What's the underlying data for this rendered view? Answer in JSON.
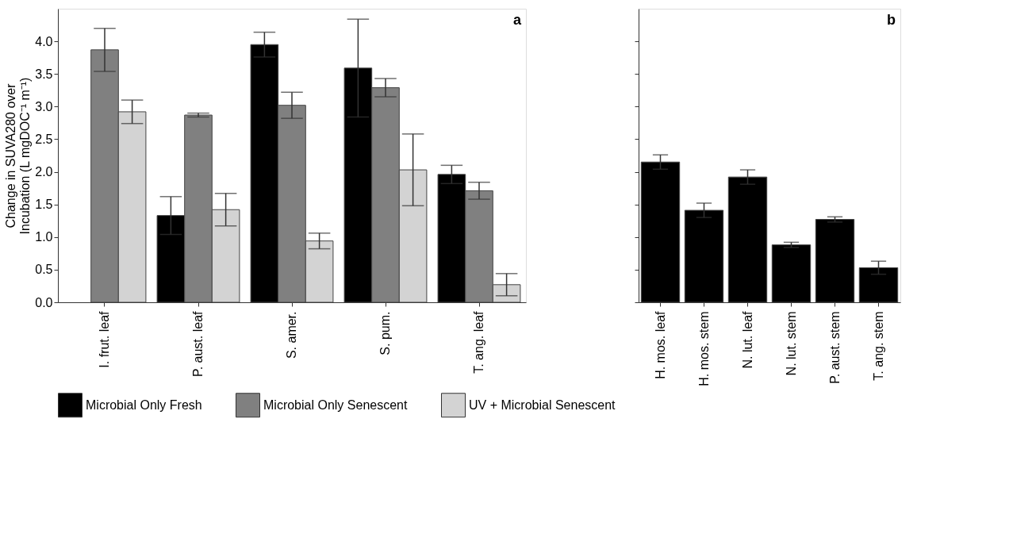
{
  "chart_data": [
    {
      "type": "bar",
      "ylabel": "Change in SUVA280 over\nIncubation (L mgDOC⁻¹ m⁻¹)",
      "categories": [
        "I. frut. leaf",
        "P. aust. leaf",
        "S. amer.",
        "S. pum.",
        "T. ang. leaf"
      ],
      "series": [
        {
          "name": "Microbial Only Fresh",
          "color": "#000000",
          "values": [
            null,
            1.33,
            3.95,
            3.59,
            1.96
          ],
          "errors": [
            null,
            0.29,
            0.19,
            0.75,
            0.14
          ]
        },
        {
          "name": "Microbial Only Senescent",
          "color": "#808080",
          "values": [
            3.87,
            2.87,
            3.02,
            3.29,
            1.71
          ],
          "errors": [
            0.33,
            0.03,
            0.2,
            0.14,
            0.13
          ]
        },
        {
          "name": "UV + Microbial Senescent",
          "color": "#d3d3d3",
          "values": [
            2.92,
            1.42,
            0.94,
            2.03,
            0.27
          ],
          "errors": [
            0.18,
            0.25,
            0.12,
            0.55,
            0.17
          ]
        }
      ],
      "ylim": [
        0,
        4.5
      ],
      "yticks": [
        {
          "value": 0,
          "label": "0.0"
        },
        0.5,
        {
          "value": 1,
          "label": "1.0"
        },
        1.5,
        {
          "value": 2,
          "label": "2.0"
        },
        2.5,
        {
          "value": 3,
          "label": "3.0"
        },
        3.5,
        {
          "value": 4,
          "label": "4.0"
        }
      ],
      "grid": false,
      "legend": "bottom",
      "annotations": [
        "a"
      ]
    },
    {
      "type": "bar",
      "categories": [
        "H. mos. leaf",
        "H. mos. stem",
        "N. lut. leaf",
        "N. lut. stem",
        "P. aust. stem",
        "T. ang. stem"
      ],
      "series": [
        {
          "color": "#000000",
          "values": [
            2.15,
            1.41,
            1.92,
            0.88,
            1.27,
            0.53
          ],
          "errors": [
            0.11,
            0.11,
            0.11,
            0.04,
            0.04,
            0.1
          ]
        }
      ],
      "ylim": [
        0,
        4.5
      ],
      "yticks": [
        {
          "value": 0,
          "label": null
        },
        {
          "value": 0.5,
          "label": null
        },
        {
          "value": 1,
          "label": null
        },
        {
          "value": 1.5,
          "label": null
        },
        {
          "value": 2,
          "label": null
        },
        {
          "value": 2.5,
          "label": null
        },
        {
          "value": 3,
          "label": null
        },
        {
          "value": 3.5,
          "label": null
        },
        {
          "value": 4,
          "label": null
        }
      ],
      "grid": false,
      "tick_labels": "x",
      "annotations": [
        "b"
      ]
    }
  ]
}
